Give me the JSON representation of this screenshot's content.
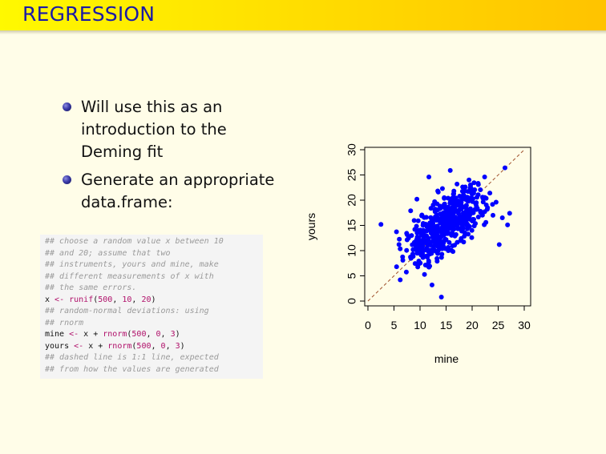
{
  "slide": {
    "title": "REGRESSION",
    "bullets": [
      "Will use this as an introduction to the Deming fit",
      "Generate an appropriate data.frame:"
    ]
  },
  "code": [
    {
      "type": "comment",
      "text": "## choose a random value x between 10"
    },
    {
      "type": "comment",
      "text": "## and 20; assume that two"
    },
    {
      "type": "comment",
      "text": "## instruments, yours and mine, make"
    },
    {
      "type": "comment",
      "text": "## different measurements of x with"
    },
    {
      "type": "comment",
      "text": "## the same errors."
    },
    {
      "type": "code",
      "parts": [
        {
          "t": "x ",
          "c": "kw"
        },
        {
          "t": "<- ",
          "c": "fn"
        },
        {
          "t": "runif",
          "c": "fn"
        },
        {
          "t": "(",
          "c": "kw"
        },
        {
          "t": "500",
          "c": "num"
        },
        {
          "t": ", ",
          "c": "kw"
        },
        {
          "t": "10",
          "c": "num"
        },
        {
          "t": ", ",
          "c": "kw"
        },
        {
          "t": "20",
          "c": "num"
        },
        {
          "t": ")",
          "c": "kw"
        }
      ]
    },
    {
      "type": "comment",
      "text": "## random-normal deviations: using"
    },
    {
      "type": "comment",
      "text": "## rnorm"
    },
    {
      "type": "code",
      "parts": [
        {
          "t": "mine ",
          "c": "kw"
        },
        {
          "t": "<- ",
          "c": "fn"
        },
        {
          "t": "x + ",
          "c": "kw"
        },
        {
          "t": "rnorm",
          "c": "fn"
        },
        {
          "t": "(",
          "c": "kw"
        },
        {
          "t": "500",
          "c": "num"
        },
        {
          "t": ", ",
          "c": "kw"
        },
        {
          "t": "0",
          "c": "num"
        },
        {
          "t": ", ",
          "c": "kw"
        },
        {
          "t": "3",
          "c": "num"
        },
        {
          "t": ")",
          "c": "kw"
        }
      ]
    },
    {
      "type": "code",
      "parts": [
        {
          "t": "yours ",
          "c": "kw"
        },
        {
          "t": "<- ",
          "c": "fn"
        },
        {
          "t": "x + ",
          "c": "kw"
        },
        {
          "t": "rnorm",
          "c": "fn"
        },
        {
          "t": "(",
          "c": "kw"
        },
        {
          "t": "500",
          "c": "num"
        },
        {
          "t": ", ",
          "c": "kw"
        },
        {
          "t": "0",
          "c": "num"
        },
        {
          "t": ", ",
          "c": "kw"
        },
        {
          "t": "3",
          "c": "num"
        },
        {
          "t": ")",
          "c": "kw"
        }
      ]
    },
    {
      "type": "comment",
      "text": "## dashed line is 1:1 line, expected"
    },
    {
      "type": "comment",
      "text": "## from how the values are generated"
    }
  ],
  "chart_data": {
    "type": "scatter",
    "xlabel": "mine",
    "ylabel": "yours",
    "xlim": [
      0,
      30
    ],
    "ylim": [
      0,
      30
    ],
    "xticks": [
      "0",
      "5",
      "10",
      "15",
      "20",
      "25",
      "30"
    ],
    "yticks": [
      "0",
      "5",
      "10",
      "15",
      "20",
      "25",
      "30"
    ],
    "reference_line": {
      "type": "1:1",
      "style": "dashed",
      "color": "#a0522d"
    },
    "point_color": "#0000ff",
    "n_points": 500,
    "points": [
      [
        2.5,
        15.2
      ],
      [
        5.5,
        6.8
      ],
      [
        6.2,
        4.2
      ],
      [
        6.7,
        8.1
      ],
      [
        7.8,
        12.5
      ],
      [
        8.2,
        17.9
      ],
      [
        8.6,
        9.3
      ],
      [
        9.0,
        14.2
      ],
      [
        9.4,
        20.2
      ],
      [
        9.8,
        12.1
      ],
      [
        10.3,
        10.5
      ],
      [
        10.6,
        15.4
      ],
      [
        10.9,
        13.0
      ],
      [
        11.2,
        16.6
      ],
      [
        11.4,
        8.7
      ],
      [
        11.7,
        24.6
      ],
      [
        11.9,
        11.3
      ],
      [
        12.1,
        18.4
      ],
      [
        12.3,
        3.2
      ],
      [
        12.6,
        14.6
      ],
      [
        12.8,
        19.7
      ],
      [
        13.0,
        9.9
      ],
      [
        13.2,
        17.1
      ],
      [
        13.5,
        21.6
      ],
      [
        13.7,
        12.6
      ],
      [
        13.9,
        15.5
      ],
      [
        14.1,
        0.8
      ],
      [
        14.3,
        22.3
      ],
      [
        14.5,
        10.8
      ],
      [
        14.7,
        18.9
      ],
      [
        15.0,
        13.7
      ],
      [
        15.2,
        16.8
      ],
      [
        15.4,
        20.4
      ],
      [
        15.6,
        11.6
      ],
      [
        15.8,
        25.9
      ],
      [
        16.0,
        17.6
      ],
      [
        16.2,
        14.4
      ],
      [
        16.5,
        21.8
      ],
      [
        16.7,
        19.3
      ],
      [
        16.9,
        13.2
      ],
      [
        17.1,
        23.2
      ],
      [
        17.4,
        16.1
      ],
      [
        17.6,
        20.8
      ],
      [
        17.9,
        12.4
      ],
      [
        18.2,
        18.6
      ],
      [
        18.5,
        22.1
      ],
      [
        18.8,
        15.8
      ],
      [
        19.1,
        19.9
      ],
      [
        19.4,
        24.0
      ],
      [
        19.7,
        17.3
      ],
      [
        20.0,
        21.2
      ],
      [
        20.4,
        14.9
      ],
      [
        20.8,
        19.5
      ],
      [
        21.2,
        23.1
      ],
      [
        21.6,
        17.8
      ],
      [
        22.0,
        20.6
      ],
      [
        22.4,
        24.6
      ],
      [
        22.9,
        18.2
      ],
      [
        23.4,
        21.4
      ],
      [
        24.0,
        17.0
      ],
      [
        24.6,
        19.6
      ],
      [
        25.2,
        11.2
      ],
      [
        25.8,
        16.5
      ],
      [
        26.3,
        26.4
      ],
      [
        26.8,
        15.1
      ],
      [
        27.2,
        17.4
      ],
      [
        14.6,
        16.2
      ],
      [
        15.3,
        18.1
      ],
      [
        13.1,
        14.8
      ],
      [
        16.4,
        15.6
      ]
    ]
  }
}
